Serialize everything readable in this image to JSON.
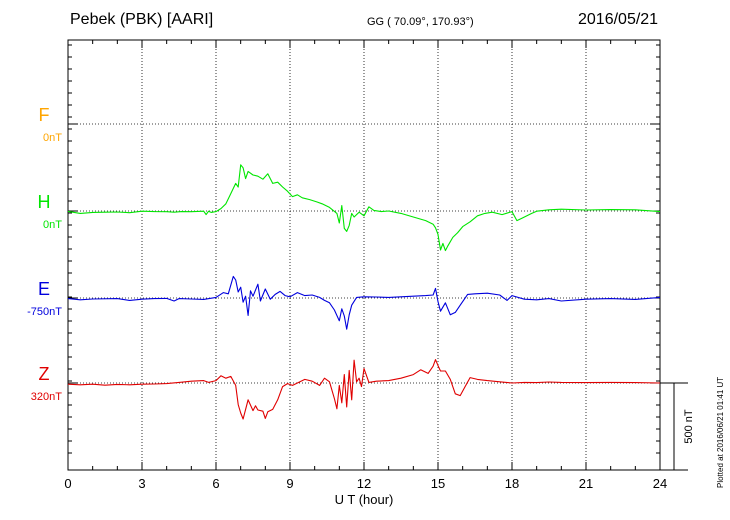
{
  "header": {
    "station": "Pebek (PBK)  [AARI]",
    "coords": "GG ( 70.09°, 170.93°)",
    "date": "2016/05/21"
  },
  "footer": {
    "plotted": "Plotted at 2016/06/21 01:41 UT"
  },
  "chart_data": {
    "type": "line",
    "xlabel": "U T (hour)",
    "xlim": [
      0,
      24
    ],
    "xticks": [
      0,
      3,
      6,
      9,
      12,
      15,
      18,
      21,
      24
    ],
    "scale_bar_label": "500 nT",
    "scale_bar_nT": 500,
    "grid": true,
    "series": [
      {
        "name": "F",
        "baseline_label": "0nT",
        "color": "#ffa500",
        "points": []
      },
      {
        "name": "H",
        "baseline_label": "0nT",
        "color": "#00e600",
        "points": [
          [
            0,
            -3
          ],
          [
            0.5,
            -20
          ],
          [
            1,
            -12
          ],
          [
            1.5,
            -10
          ],
          [
            2,
            -8
          ],
          [
            2.5,
            -14
          ],
          [
            3,
            -2
          ],
          [
            3.5,
            -5
          ],
          [
            4,
            -6
          ],
          [
            4.3,
            -10
          ],
          [
            4.6,
            -5
          ],
          [
            5,
            -6
          ],
          [
            5.5,
            -2
          ],
          [
            5.6,
            -30
          ],
          [
            5.7,
            -2
          ],
          [
            5.8,
            -12
          ],
          [
            6,
            -5
          ],
          [
            6.2,
            20
          ],
          [
            6.4,
            60
          ],
          [
            6.6,
            145
          ],
          [
            6.8,
            230
          ],
          [
            6.9,
            200
          ],
          [
            7,
            385
          ],
          [
            7.1,
            360
          ],
          [
            7.2,
            270
          ],
          [
            7.3,
            330
          ],
          [
            7.5,
            300
          ],
          [
            7.7,
            290
          ],
          [
            7.9,
            265
          ],
          [
            8.1,
            310
          ],
          [
            8.3,
            230
          ],
          [
            8.5,
            240
          ],
          [
            8.7,
            200
          ],
          [
            8.9,
            165
          ],
          [
            9.1,
            120
          ],
          [
            9.3,
            135
          ],
          [
            9.5,
            110
          ],
          [
            9.8,
            95
          ],
          [
            10.1,
            75
          ],
          [
            10.3,
            60
          ],
          [
            10.6,
            30
          ],
          [
            10.9,
            -20
          ],
          [
            11,
            -100
          ],
          [
            11.1,
            45
          ],
          [
            11.2,
            -145
          ],
          [
            11.3,
            -170
          ],
          [
            11.4,
            -120
          ],
          [
            11.5,
            -20
          ],
          [
            11.6,
            -50
          ],
          [
            11.8,
            -10
          ],
          [
            12,
            -40
          ],
          [
            12.2,
            35
          ],
          [
            12.4,
            5
          ],
          [
            12.7,
            -5
          ],
          [
            13,
            0
          ],
          [
            13.5,
            -20
          ],
          [
            14,
            -50
          ],
          [
            14.5,
            -80
          ],
          [
            14.8,
            -110
          ],
          [
            14.9,
            -140
          ],
          [
            15,
            -195
          ],
          [
            15.1,
            -325
          ],
          [
            15.2,
            -270
          ],
          [
            15.3,
            -330
          ],
          [
            15.4,
            -290
          ],
          [
            15.6,
            -220
          ],
          [
            15.8,
            -180
          ],
          [
            16,
            -130
          ],
          [
            16.3,
            -90
          ],
          [
            16.6,
            -40
          ],
          [
            16.9,
            -20
          ],
          [
            17.2,
            -10
          ],
          [
            17.6,
            -30
          ],
          [
            18,
            -5
          ],
          [
            18.2,
            -80
          ],
          [
            18.4,
            -60
          ],
          [
            18.8,
            -20
          ],
          [
            19,
            -2
          ],
          [
            19.5,
            10
          ],
          [
            20,
            15
          ],
          [
            21,
            8
          ],
          [
            22,
            12
          ],
          [
            23,
            10
          ],
          [
            24,
            -5
          ]
        ]
      },
      {
        "name": "E",
        "baseline_label": "-750nT",
        "color": "#0000dd",
        "points": [
          [
            0,
            -5
          ],
          [
            0.5,
            -15
          ],
          [
            1,
            -8
          ],
          [
            2,
            -5
          ],
          [
            2.5,
            -20
          ],
          [
            3,
            -10
          ],
          [
            3.5,
            -5
          ],
          [
            4,
            -3
          ],
          [
            4.3,
            -25
          ],
          [
            4.5,
            -5
          ],
          [
            5,
            -8
          ],
          [
            5.5,
            -12
          ],
          [
            6,
            5
          ],
          [
            6.3,
            45
          ],
          [
            6.5,
            35
          ],
          [
            6.7,
            180
          ],
          [
            6.8,
            150
          ],
          [
            6.9,
            50
          ],
          [
            7,
            90
          ],
          [
            7.1,
            -35
          ],
          [
            7.2,
            15
          ],
          [
            7.3,
            -145
          ],
          [
            7.4,
            60
          ],
          [
            7.5,
            15
          ],
          [
            7.7,
            115
          ],
          [
            7.8,
            -25
          ],
          [
            8,
            75
          ],
          [
            8.2,
            -10
          ],
          [
            8.4,
            30
          ],
          [
            8.6,
            55
          ],
          [
            8.8,
            20
          ],
          [
            9,
            10
          ],
          [
            9.3,
            45
          ],
          [
            9.6,
            20
          ],
          [
            9.9,
            25
          ],
          [
            10.2,
            5
          ],
          [
            10.4,
            -20
          ],
          [
            10.6,
            -40
          ],
          [
            10.8,
            -100
          ],
          [
            11,
            -190
          ],
          [
            11.1,
            -90
          ],
          [
            11.2,
            -150
          ],
          [
            11.3,
            -260
          ],
          [
            11.4,
            -140
          ],
          [
            11.5,
            -60
          ],
          [
            11.7,
            5
          ],
          [
            12,
            10
          ],
          [
            12.5,
            8
          ],
          [
            13,
            5
          ],
          [
            13.5,
            10
          ],
          [
            14,
            15
          ],
          [
            14.5,
            20
          ],
          [
            14.8,
            25
          ],
          [
            14.9,
            80
          ],
          [
            15,
            -30
          ],
          [
            15.1,
            -110
          ],
          [
            15.3,
            -40
          ],
          [
            15.5,
            -140
          ],
          [
            15.7,
            -120
          ],
          [
            15.9,
            -60
          ],
          [
            16.2,
            30
          ],
          [
            16.5,
            35
          ],
          [
            17,
            40
          ],
          [
            17.5,
            25
          ],
          [
            17.8,
            -20
          ],
          [
            18,
            20
          ],
          [
            18.5,
            -10
          ],
          [
            19,
            -15
          ],
          [
            19.5,
            -5
          ],
          [
            20,
            -25
          ],
          [
            21,
            -10
          ],
          [
            22,
            -5
          ],
          [
            23,
            -12
          ],
          [
            24,
            5
          ]
        ]
      },
      {
        "name": "Z",
        "baseline_label": "320nT",
        "color": "#e00000",
        "points": [
          [
            0,
            -10
          ],
          [
            0.5,
            -15
          ],
          [
            1,
            -10
          ],
          [
            1.5,
            -18
          ],
          [
            2,
            -12
          ],
          [
            2.5,
            -15
          ],
          [
            3,
            -10
          ],
          [
            3.5,
            -8
          ],
          [
            4,
            -5
          ],
          [
            4.5,
            5
          ],
          [
            5,
            15
          ],
          [
            5.5,
            20
          ],
          [
            5.7,
            5
          ],
          [
            6,
            20
          ],
          [
            6.2,
            60
          ],
          [
            6.4,
            40
          ],
          [
            6.6,
            55
          ],
          [
            6.8,
            -20
          ],
          [
            6.9,
            -180
          ],
          [
            7,
            -250
          ],
          [
            7.1,
            -300
          ],
          [
            7.3,
            -140
          ],
          [
            7.5,
            -230
          ],
          [
            7.6,
            -190
          ],
          [
            7.7,
            -225
          ],
          [
            7.9,
            -235
          ],
          [
            8,
            -295
          ],
          [
            8.1,
            -240
          ],
          [
            8.3,
            -220
          ],
          [
            8.5,
            -140
          ],
          [
            8.7,
            -30
          ],
          [
            8.9,
            -5
          ],
          [
            9.1,
            -20
          ],
          [
            9.3,
            0
          ],
          [
            9.6,
            30
          ],
          [
            9.9,
            15
          ],
          [
            10.2,
            -20
          ],
          [
            10.4,
            40
          ],
          [
            10.6,
            10
          ],
          [
            10.8,
            -130
          ],
          [
            10.9,
            -215
          ],
          [
            11,
            -20
          ],
          [
            11.1,
            -165
          ],
          [
            11.2,
            70
          ],
          [
            11.3,
            -200
          ],
          [
            11.4,
            105
          ],
          [
            11.5,
            -140
          ],
          [
            11.6,
            190
          ],
          [
            11.7,
            10
          ],
          [
            11.8,
            40
          ],
          [
            11.9,
            -30
          ],
          [
            12,
            120
          ],
          [
            12.2,
            5
          ],
          [
            12.5,
            15
          ],
          [
            13,
            20
          ],
          [
            13.5,
            40
          ],
          [
            14,
            70
          ],
          [
            14.3,
            110
          ],
          [
            14.6,
            80
          ],
          [
            14.8,
            140
          ],
          [
            14.9,
            195
          ],
          [
            15,
            145
          ],
          [
            15.1,
            100
          ],
          [
            15.3,
            100
          ],
          [
            15.5,
            30
          ],
          [
            15.7,
            -90
          ],
          [
            15.9,
            -105
          ],
          [
            16.1,
            -30
          ],
          [
            16.3,
            45
          ],
          [
            16.6,
            30
          ],
          [
            17,
            20
          ],
          [
            17.5,
            10
          ],
          [
            18,
            0
          ],
          [
            18.5,
            5
          ],
          [
            19,
            3
          ],
          [
            19.5,
            8
          ],
          [
            20,
            5
          ],
          [
            21,
            3
          ],
          [
            22,
            5
          ],
          [
            23,
            3
          ],
          [
            24,
            0
          ]
        ]
      }
    ]
  }
}
